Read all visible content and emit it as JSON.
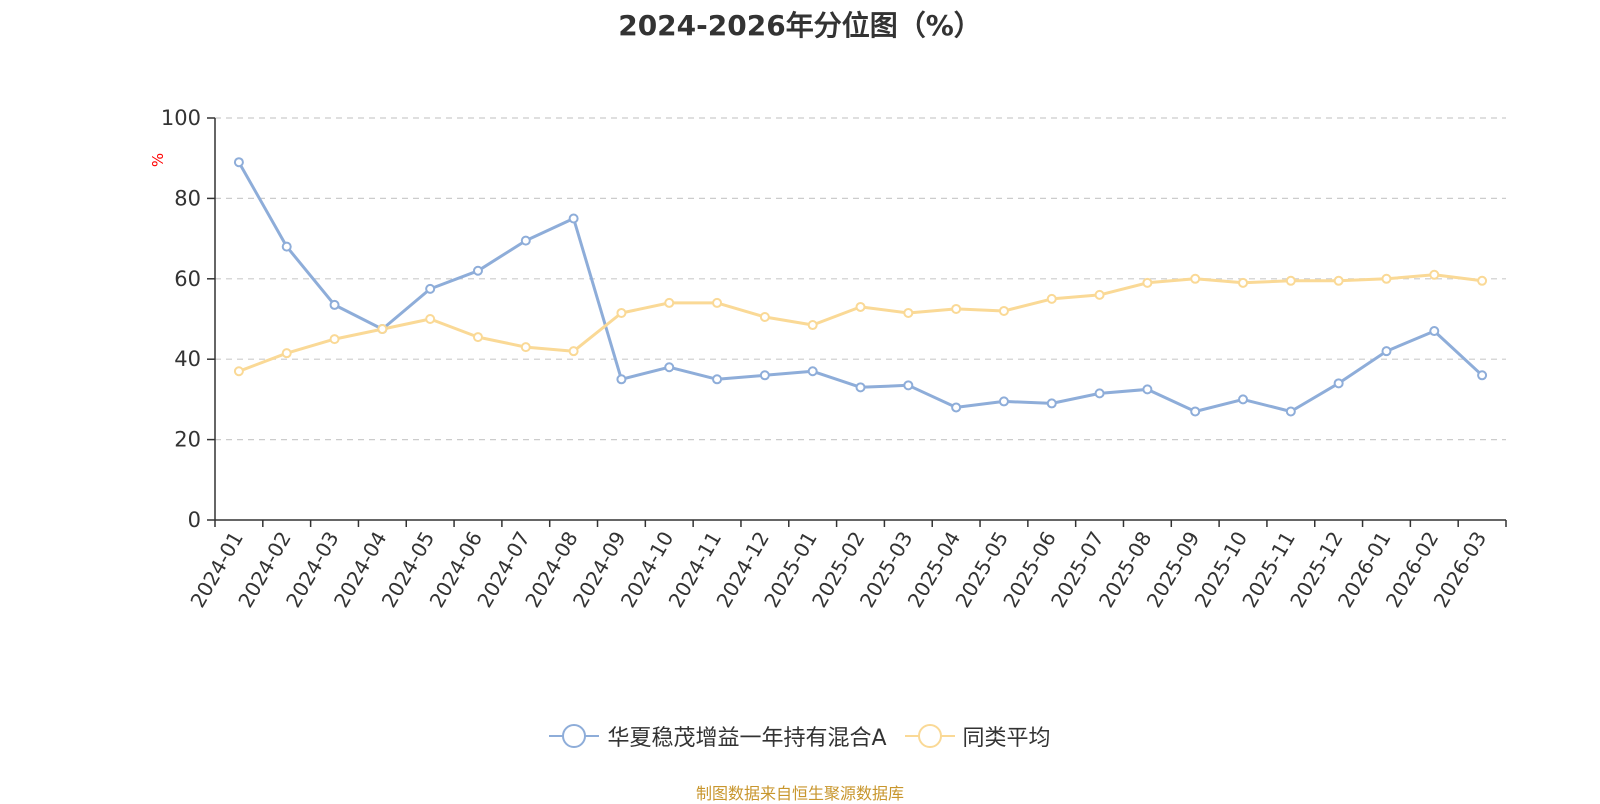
{
  "chart_data": {
    "type": "line",
    "title": "2024-2026年分位图（%）",
    "ylabel": "%",
    "xlabel": "",
    "ylim": [
      0,
      100
    ],
    "yticks": [
      0,
      20,
      40,
      60,
      80,
      100
    ],
    "grid": true,
    "legend_position": "bottom",
    "categories": [
      "2024-01",
      "2024-02",
      "2024-03",
      "2024-04",
      "2024-05",
      "2024-06",
      "2024-07",
      "2024-08",
      "2024-09",
      "2024-10",
      "2024-11",
      "2024-12",
      "2025-01",
      "2025-02",
      "2025-03",
      "2025-04",
      "2025-05",
      "2025-06",
      "2025-07",
      "2025-08",
      "2025-09",
      "2025-10",
      "2025-11",
      "2025-12",
      "2026-01",
      "2026-02",
      "2026-03"
    ],
    "series": [
      {
        "name": "华夏稳茂增益一年持有混合A",
        "color": "#8eadd9",
        "values": [
          89,
          68,
          53.5,
          47.5,
          57.5,
          62,
          69.5,
          75,
          35,
          38,
          35,
          36,
          37,
          33,
          33.5,
          28,
          29.5,
          29,
          31.5,
          32.5,
          27,
          30,
          27,
          34,
          42,
          47,
          36
        ]
      },
      {
        "name": "同类平均",
        "color": "#fad996",
        "values": [
          37,
          41.5,
          45,
          47.5,
          50,
          45.5,
          43,
          42,
          51.5,
          54,
          54,
          50.5,
          48.5,
          53,
          51.5,
          52.5,
          52,
          55,
          56,
          59,
          60,
          59,
          59.5,
          59.5,
          60,
          61,
          59.5
        ]
      }
    ]
  },
  "source_text": "制图数据来自恒生聚源数据库",
  "colors": {
    "axis": "#333333",
    "grid": "#cccccc",
    "ylabel": "#ff0000",
    "source": "#c8962d"
  }
}
